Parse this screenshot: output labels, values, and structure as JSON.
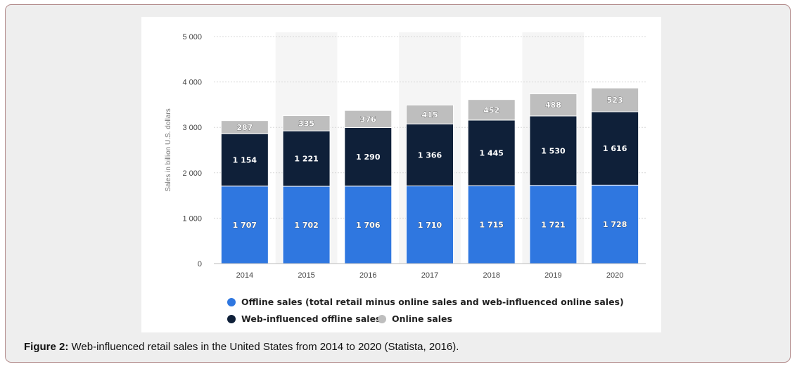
{
  "caption": {
    "label": "Figure 2:",
    "text": "Web-influenced retail sales in the United States from 2014 to 2020 (Statista, 2016)."
  },
  "colors": {
    "offline": "#2f77e0",
    "web": "#0f2039",
    "online": "#bebebe",
    "grid": "#d8d8d8",
    "shade": "#f5f5f5"
  },
  "chart_data": {
    "type": "bar",
    "stacked": true,
    "categories": [
      "2014",
      "2015",
      "2016",
      "2017",
      "2018",
      "2019",
      "2020"
    ],
    "series": [
      {
        "name": "Offline sales (total retail minus online sales and web-influenced online sales)",
        "values": [
          1707,
          1702,
          1706,
          1710,
          1715,
          1721,
          1728
        ]
      },
      {
        "name": "Web-influenced offline sales",
        "values": [
          1154,
          1221,
          1290,
          1366,
          1445,
          1530,
          1616
        ]
      },
      {
        "name": "Online sales",
        "values": [
          287,
          335,
          376,
          415,
          452,
          488,
          523
        ]
      }
    ],
    "value_labels": [
      [
        "1 707",
        "1 702",
        "1 706",
        "1 710",
        "1 715",
        "1 721",
        "1 728"
      ],
      [
        "1 154",
        "1 221",
        "1 290",
        "1 366",
        "1 445",
        "1 530",
        "1 616"
      ],
      [
        "287",
        "335",
        "376",
        "415",
        "452",
        "488",
        "523"
      ]
    ],
    "ylabel": "Sales in billion U.S. dollars",
    "xlabel": "",
    "ylim": [
      0,
      5000
    ],
    "yticks": [
      0,
      1000,
      2000,
      3000,
      4000,
      5000
    ],
    "ytick_labels": [
      "0",
      "1 000",
      "2 000",
      "3 000",
      "4 000",
      "5 000"
    ],
    "grid": true,
    "legend_position": "bottom-left"
  }
}
